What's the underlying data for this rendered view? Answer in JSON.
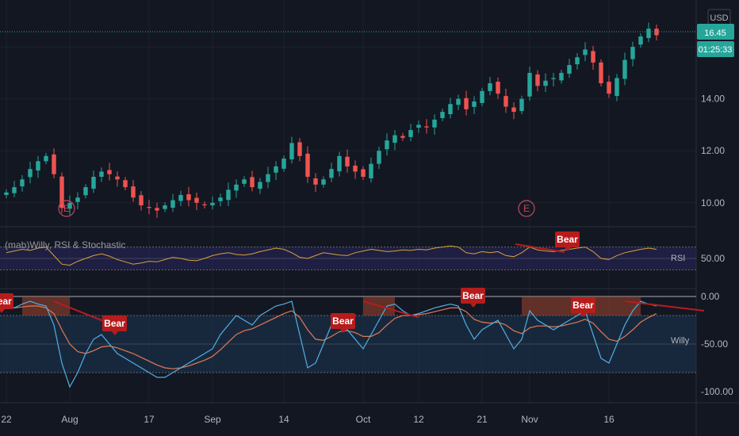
{
  "currency": "USD",
  "last_price": "16.45",
  "countdown": "01:25:33",
  "indicator_title": "(mab)Willy, RSI & Stochastic",
  "rsi_label": "RSI",
  "willy_label": "Willy",
  "earnings_label": "E",
  "signal_label": "Bear",
  "colors": {
    "background": "#131722",
    "up": "#26a69a",
    "down": "#ef5350",
    "rsi_line": "#d8a23a",
    "willy_line": "#4fb0e6",
    "willy_signal": "#e07a55",
    "bear_tag": "#b71c1c",
    "earnings": "#c2485c"
  },
  "chart_data": [
    {
      "type": "candlestick",
      "x_ticks": [
        "22",
        "Aug",
        "17",
        "Sep",
        "14",
        "Oct",
        "12",
        "21",
        "Nov",
        "16"
      ],
      "y_ticks": [
        "10.00",
        "12.00",
        "14.00"
      ],
      "ylim": [
        9.2,
        17.5
      ],
      "last_value": 16.45,
      "close": [
        10.4,
        10.6,
        10.9,
        11.3,
        11.6,
        11.8,
        11.1,
        9.8,
        10.0,
        10.2,
        10.6,
        11.0,
        11.2,
        11.1,
        10.9,
        10.6,
        10.2,
        9.9,
        9.8,
        9.7,
        9.9,
        10.1,
        10.3,
        10.1,
        10.0,
        9.9,
        10.0,
        10.2,
        10.5,
        10.7,
        10.9,
        10.6,
        10.8,
        11.1,
        11.4,
        11.7,
        12.3,
        11.8,
        11.0,
        10.7,
        10.9,
        11.3,
        11.8,
        11.4,
        11.2,
        11.0,
        11.5,
        12.0,
        12.4,
        12.6,
        12.5,
        12.8,
        13.0,
        12.9,
        13.2,
        13.5,
        13.8,
        14.0,
        13.6,
        13.9,
        14.3,
        14.6,
        14.2,
        13.7,
        13.5,
        14.0,
        15.0,
        14.5,
        14.7,
        14.8,
        15.0,
        15.3,
        15.6,
        15.9,
        15.4,
        14.6,
        14.2,
        14.8,
        15.5,
        16.0,
        16.4,
        16.7,
        16.45
      ],
      "earnings_markers": [
        "Aug",
        "Nov"
      ]
    },
    {
      "type": "line",
      "title": "(mab)Willy, RSI & Stochastic",
      "series": [
        {
          "name": "RSI",
          "values": [
            60,
            63,
            66,
            64,
            68,
            70,
            55,
            40,
            38,
            45,
            50,
            55,
            58,
            54,
            48,
            44,
            40,
            42,
            45,
            44,
            48,
            52,
            50,
            47,
            46,
            50,
            55,
            58,
            60,
            57,
            56,
            58,
            62,
            65,
            68,
            66,
            60,
            52,
            50,
            55,
            60,
            58,
            56,
            55,
            60,
            63,
            66,
            64,
            62,
            63,
            65,
            64,
            66,
            65,
            68,
            70,
            72,
            70,
            60,
            58,
            62,
            60,
            62,
            55,
            53,
            60,
            70,
            65,
            63,
            62,
            64,
            66,
            68,
            70,
            62,
            50,
            48,
            55,
            60,
            63,
            66,
            68,
            66
          ]
        }
      ],
      "y_ticks": [
        "50.00"
      ],
      "ylim": [
        0,
        100
      ],
      "bands": [
        30,
        50,
        70
      ]
    },
    {
      "type": "line",
      "series": [
        {
          "name": "Willy",
          "values": [
            -10,
            -12,
            -8,
            -5,
            -8,
            -10,
            -30,
            -70,
            -95,
            -80,
            -60,
            -45,
            -40,
            -50,
            -60,
            -65,
            -70,
            -75,
            -80,
            -85,
            -85,
            -80,
            -75,
            -70,
            -65,
            -60,
            -55,
            -40,
            -30,
            -20,
            -25,
            -30,
            -20,
            -15,
            -10,
            -8,
            -5,
            -40,
            -75,
            -70,
            -50,
            -30,
            -20,
            -35,
            -45,
            -55,
            -40,
            -25,
            -10,
            -8,
            -15,
            -20,
            -18,
            -15,
            -12,
            -10,
            -8,
            -10,
            -30,
            -45,
            -35,
            -30,
            -25,
            -40,
            -55,
            -45,
            -15,
            -25,
            -30,
            -35,
            -30,
            -25,
            -20,
            -15,
            -40,
            -65,
            -70,
            -50,
            -30,
            -15,
            -5,
            -8,
            -10
          ]
        },
        {
          "name": "Signal",
          "values": [
            -12,
            -12,
            -11,
            -10,
            -10,
            -12,
            -18,
            -35,
            -50,
            -58,
            -60,
            -57,
            -53,
            -52,
            -54,
            -57,
            -60,
            -64,
            -68,
            -72,
            -75,
            -76,
            -75,
            -73,
            -70,
            -67,
            -63,
            -56,
            -48,
            -40,
            -36,
            -34,
            -30,
            -26,
            -22,
            -18,
            -15,
            -22,
            -35,
            -45,
            -46,
            -42,
            -37,
            -36,
            -38,
            -42,
            -42,
            -38,
            -30,
            -23,
            -20,
            -20,
            -19,
            -18,
            -16,
            -14,
            -12,
            -12,
            -16,
            -24,
            -27,
            -28,
            -27,
            -30,
            -36,
            -39,
            -33,
            -31,
            -31,
            -32,
            -31,
            -29,
            -27,
            -24,
            -28,
            -37,
            -45,
            -47,
            -42,
            -35,
            -27,
            -22,
            -18
          ]
        }
      ],
      "y_ticks": [
        "0.00",
        "-50.00",
        "-100.00"
      ],
      "ylim": [
        -110,
        5
      ],
      "bands": [
        0,
        -20,
        -80
      ]
    }
  ]
}
